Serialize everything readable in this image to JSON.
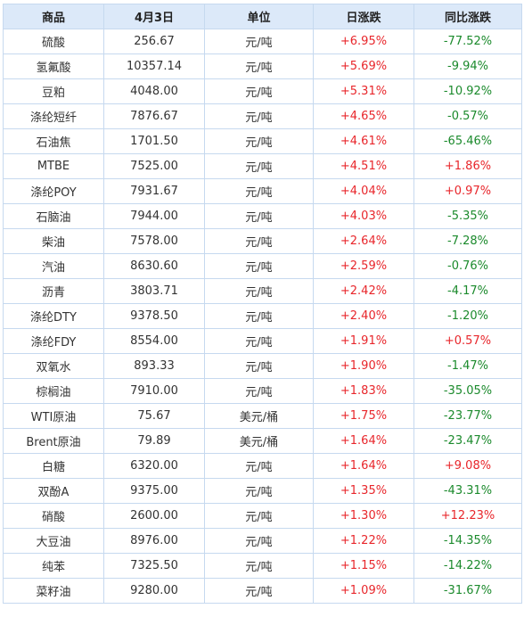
{
  "headers": [
    "商品",
    "4月3日",
    "单位",
    "日涨跌",
    "同比涨跌"
  ],
  "rows": [
    [
      "硫酸",
      "256.67",
      "元/吨",
      "+6.95%",
      "-77.52%"
    ],
    [
      "氢氟酸",
      "10357.14",
      "元/吨",
      "+5.69%",
      "-9.94%"
    ],
    [
      "豆粕",
      "4048.00",
      "元/吨",
      "+5.31%",
      "-10.92%"
    ],
    [
      "涤纶短纤",
      "7876.67",
      "元/吨",
      "+4.65%",
      "-0.57%"
    ],
    [
      "石油焦",
      "1701.50",
      "元/吨",
      "+4.61%",
      "-65.46%"
    ],
    [
      "MTBE",
      "7525.00",
      "元/吨",
      "+4.51%",
      "+1.86%"
    ],
    [
      "涤纶POY",
      "7931.67",
      "元/吨",
      "+4.04%",
      "+0.97%"
    ],
    [
      "石脑油",
      "7944.00",
      "元/吨",
      "+4.03%",
      "-5.35%"
    ],
    [
      "柴油",
      "7578.00",
      "元/吨",
      "+2.64%",
      "-7.28%"
    ],
    [
      "汽油",
      "8630.60",
      "元/吨",
      "+2.59%",
      "-0.76%"
    ],
    [
      "沥青",
      "3803.71",
      "元/吨",
      "+2.42%",
      "-4.17%"
    ],
    [
      "涤纶DTY",
      "9378.50",
      "元/吨",
      "+2.40%",
      "-1.20%"
    ],
    [
      "涤纶FDY",
      "8554.00",
      "元/吨",
      "+1.91%",
      "+0.57%"
    ],
    [
      "双氧水",
      "893.33",
      "元/吨",
      "+1.90%",
      "-1.47%"
    ],
    [
      "棕榈油",
      "7910.00",
      "元/吨",
      "+1.83%",
      "-35.05%"
    ],
    [
      "WTI原油",
      "75.67",
      "美元/桶",
      "+1.75%",
      "-23.77%"
    ],
    [
      "Brent原油",
      "79.89",
      "美元/桶",
      "+1.64%",
      "-23.47%"
    ],
    [
      "白糖",
      "6320.00",
      "元/吨",
      "+1.64%",
      "+9.08%"
    ],
    [
      "双酚A",
      "9375.00",
      "元/吨",
      "+1.35%",
      "-43.31%"
    ],
    [
      "硝酸",
      "2600.00",
      "元/吨",
      "+1.30%",
      "+12.23%"
    ],
    [
      "大豆油",
      "8976.00",
      "元/吨",
      "+1.22%",
      "-14.35%"
    ],
    [
      "纯苯",
      "7325.50",
      "元/吨",
      "+1.15%",
      "-14.22%"
    ],
    [
      "菜籽油",
      "9280.00",
      "元/吨",
      "+1.09%",
      "-31.67%"
    ]
  ],
  "colors": {
    "header_bg": "#dce9f9",
    "border": "#c6d9ef",
    "positive": "#e8262b",
    "negative": "#1b8a2c",
    "text": "#333333"
  }
}
